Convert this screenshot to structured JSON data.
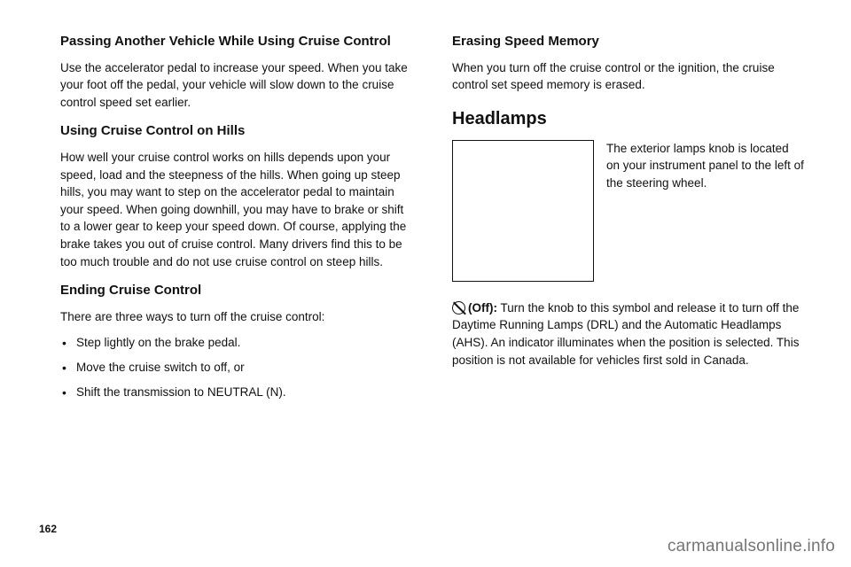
{
  "left": {
    "sec1": {
      "heading": "Passing Another Vehicle While Using Cruise Control",
      "body": "Use the accelerator pedal to increase your speed. When you take your foot off the pedal, your vehicle will slow down to the cruise control speed set earlier."
    },
    "sec2": {
      "heading": "Using Cruise Control on Hills",
      "body": "How well your cruise control works on hills depends upon your speed, load and the steepness of the hills. When going up steep hills, you may want to step on the accelerator pedal to maintain your speed. When going downhill, you may have to brake or shift to a lower gear to keep your speed down. Of course, applying the brake takes you out of cruise control. Many drivers find this to be too much trouble and do not use cruise control on steep hills."
    },
    "sec3": {
      "heading": "Ending Cruise Control",
      "intro": "There are three ways to turn off the cruise control:",
      "items": [
        "Step lightly on the brake pedal.",
        "Move the cruise switch to off, or",
        "Shift the transmission to NEUTRAL (N)."
      ]
    }
  },
  "right": {
    "sec1": {
      "heading": "Erasing Speed Memory",
      "body": "When you turn off the cruise control or the ignition, the cruise control set speed memory is erased."
    },
    "sec2": {
      "heading": "Headlamps",
      "caption": "The exterior lamps knob is located on your instrument panel to the left of the steering wheel."
    },
    "off": {
      "label": "(Off):",
      "body": "Turn the knob to this symbol and release it to turn off the Daytime Running Lamps (DRL) and the Automatic Headlamps (AHS). An indicator illuminates when the position is selected. This position is not available for vehicles first sold in Canada."
    }
  },
  "pageNumber": "162",
  "watermark": "carmanualsonline.info"
}
